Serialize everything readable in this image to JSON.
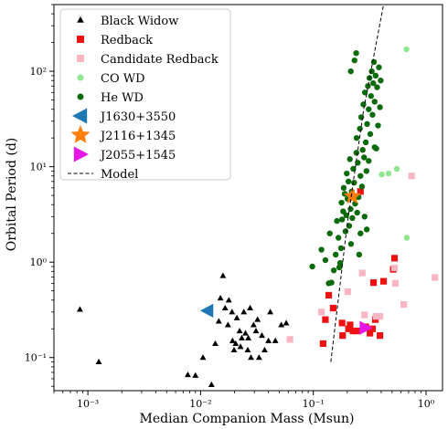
{
  "chart_data": {
    "type": "scatter",
    "xlabel": "Median Companion Mass (Msun)",
    "ylabel": "Orbital Period (d)",
    "xscale": "log",
    "yscale": "log",
    "xlim": [
      0.0005,
      1.4
    ],
    "ylim": [
      0.045,
      500
    ],
    "grid": false,
    "legend_placement": "top-left",
    "x_ticks": [
      {
        "value": 0.001,
        "label": "10⁻³"
      },
      {
        "value": 0.01,
        "label": "10⁻²"
      },
      {
        "value": 0.1,
        "label": "10⁻¹"
      },
      {
        "value": 1,
        "label": "10⁰"
      }
    ],
    "y_ticks": [
      {
        "value": 0.1,
        "label": "10⁻¹"
      },
      {
        "value": 1,
        "label": "10⁰"
      },
      {
        "value": 10,
        "label": "10¹"
      },
      {
        "value": 100,
        "label": "10²"
      }
    ],
    "series": [
      {
        "name": "Black Widow",
        "marker": "triangle",
        "color": "#000000",
        "points": [
          [
            0.00085,
            0.32
          ],
          [
            0.00125,
            0.09
          ],
          [
            0.0077,
            0.066
          ],
          [
            0.009,
            0.065
          ],
          [
            0.0125,
            0.052
          ],
          [
            0.0105,
            0.1
          ],
          [
            0.0135,
            0.14
          ],
          [
            0.0145,
            0.24
          ],
          [
            0.015,
            0.42
          ],
          [
            0.0158,
            0.72
          ],
          [
            0.0165,
            0.33
          ],
          [
            0.0175,
            0.22
          ],
          [
            0.0178,
            0.4
          ],
          [
            0.019,
            0.3
          ],
          [
            0.0192,
            0.15
          ],
          [
            0.0198,
            0.12
          ],
          [
            0.0205,
            0.14
          ],
          [
            0.021,
            0.26
          ],
          [
            0.0222,
            0.19
          ],
          [
            0.0226,
            0.13
          ],
          [
            0.0232,
            0.16
          ],
          [
            0.0242,
            0.3
          ],
          [
            0.025,
            0.18
          ],
          [
            0.0262,
            0.12
          ],
          [
            0.0265,
            0.16
          ],
          [
            0.0275,
            0.33
          ],
          [
            0.028,
            0.1
          ],
          [
            0.0295,
            0.22
          ],
          [
            0.031,
            0.19
          ],
          [
            0.032,
            0.25
          ],
          [
            0.033,
            0.1
          ],
          [
            0.035,
            0.17
          ],
          [
            0.037,
            0.12
          ],
          [
            0.04,
            0.15
          ],
          [
            0.0415,
            0.3
          ],
          [
            0.046,
            0.15
          ],
          [
            0.052,
            0.22
          ],
          [
            0.0575,
            0.23
          ]
        ]
      },
      {
        "name": "Redback",
        "marker": "square",
        "color": "#ee1111",
        "points": [
          [
            0.122,
            0.14
          ],
          [
            0.128,
            0.25
          ],
          [
            0.137,
            0.45
          ],
          [
            0.15,
            0.33
          ],
          [
            0.18,
            0.23
          ],
          [
            0.182,
            0.17
          ],
          [
            0.205,
            0.2
          ],
          [
            0.212,
            0.22
          ],
          [
            0.225,
            0.19
          ],
          [
            0.245,
            0.19
          ],
          [
            0.262,
            5.5
          ],
          [
            0.292,
            0.21
          ],
          [
            0.318,
            0.18
          ],
          [
            0.335,
            0.2
          ],
          [
            0.342,
            0.61
          ],
          [
            0.355,
            0.25
          ],
          [
            0.39,
            0.17
          ],
          [
            0.42,
            0.63
          ],
          [
            0.512,
            0.84
          ],
          [
            0.525,
            1.1
          ]
        ]
      },
      {
        "name": "Candidate Redback",
        "marker": "square",
        "color": "#f7b6c2",
        "points": [
          [
            0.062,
            0.155
          ],
          [
            0.118,
            0.3
          ],
          [
            0.202,
            0.49
          ],
          [
            0.272,
            0.77
          ],
          [
            0.285,
            0.28
          ],
          [
            0.36,
            0.27
          ],
          [
            0.39,
            0.27
          ],
          [
            0.525,
            0.87
          ],
          [
            0.535,
            0.6
          ],
          [
            0.635,
            0.36
          ],
          [
            0.745,
            8.0
          ],
          [
            1.2,
            0.69
          ]
        ]
      },
      {
        "name": "CO WD",
        "marker": "circle",
        "color": "#8ee68e",
        "points": [
          [
            0.405,
            8.3
          ],
          [
            0.465,
            8.5
          ],
          [
            0.55,
            9.5
          ],
          [
            0.67,
            170
          ],
          [
            0.675,
            1.8
          ]
        ]
      },
      {
        "name": "He WD",
        "marker": "circle",
        "color": "#0b6b0b",
        "points": [
          [
            0.137,
            0.6
          ],
          [
            0.145,
            0.61
          ],
          [
            0.152,
            0.82
          ],
          [
            0.158,
            1.2
          ],
          [
            0.162,
            2.7
          ],
          [
            0.167,
            1.8
          ],
          [
            0.17,
            0.88
          ],
          [
            0.173,
            0.98
          ],
          [
            0.176,
            1.4
          ],
          [
            0.178,
            4.2
          ],
          [
            0.18,
            2.8
          ],
          [
            0.184,
            3.4
          ],
          [
            0.186,
            6.0
          ],
          [
            0.19,
            5.2
          ],
          [
            0.193,
            2.1
          ],
          [
            0.196,
            3.1
          ],
          [
            0.198,
            8.5
          ],
          [
            0.201,
            4.6
          ],
          [
            0.205,
            7.0
          ],
          [
            0.208,
            2.4
          ],
          [
            0.211,
            12.0
          ],
          [
            0.214,
            3.6
          ],
          [
            0.216,
            1.55
          ],
          [
            0.219,
            5.5
          ],
          [
            0.222,
            2.9
          ],
          [
            0.226,
            9.5
          ],
          [
            0.23,
            6.8
          ],
          [
            0.235,
            4.1
          ],
          [
            0.241,
            14.0
          ],
          [
            0.242,
            20.0
          ],
          [
            0.245,
            3.3
          ],
          [
            0.248,
            11.0
          ],
          [
            0.252,
            4.8
          ],
          [
            0.255,
            1.2
          ],
          [
            0.259,
            25.0
          ],
          [
            0.262,
            8.0
          ],
          [
            0.266,
            33.0
          ],
          [
            0.27,
            6.2
          ],
          [
            0.274,
            15.0
          ],
          [
            0.278,
            45.0
          ],
          [
            0.282,
            12.5
          ],
          [
            0.287,
            60.0
          ],
          [
            0.292,
            18.0
          ],
          [
            0.296,
            9.0
          ],
          [
            0.3,
            28.0
          ],
          [
            0.305,
            70.0
          ],
          [
            0.31,
            40.0
          ],
          [
            0.315,
            85.0
          ],
          [
            0.32,
            22.0
          ],
          [
            0.325,
            55.0
          ],
          [
            0.33,
            100.0
          ],
          [
            0.335,
            35.0
          ],
          [
            0.34,
            75.0
          ],
          [
            0.345,
            125.0
          ],
          [
            0.35,
            48.0
          ],
          [
            0.357,
            90.0
          ],
          [
            0.362,
            15.5
          ],
          [
            0.368,
            68.0
          ],
          [
            0.375,
            27.0
          ],
          [
            0.382,
            110.0
          ],
          [
            0.39,
            42.0
          ],
          [
            0.396,
            80.0
          ],
          [
            0.098,
            0.9
          ],
          [
            0.118,
            1.35
          ],
          [
            0.128,
            1.05
          ],
          [
            0.14,
            2.0
          ],
          [
            0.215,
            100.0
          ],
          [
            0.232,
            130.0
          ],
          [
            0.24,
            155.0
          ],
          [
            0.262,
            2.0
          ],
          [
            0.285,
            3.0
          ],
          [
            0.298,
            2.2
          ],
          [
            0.31,
            11.5
          ],
          [
            0.35,
            16.0
          ]
        ]
      },
      {
        "name": "J1630+3550",
        "marker": "triangle-left",
        "color": "#1f77b4",
        "points": [
          [
            0.0115,
            0.31
          ]
        ]
      },
      {
        "name": "J2116+1345",
        "marker": "star",
        "color": "#ff7f0e",
        "points": [
          [
            0.222,
            4.9
          ]
        ]
      },
      {
        "name": "J2055+1545",
        "marker": "triangle-right",
        "color": "#e617e6",
        "points": [
          [
            0.29,
            0.205
          ]
        ]
      },
      {
        "name": "Model",
        "type": "line",
        "style": "dashed",
        "color": "#000000",
        "points": [
          [
            0.143,
            0.09
          ],
          [
            0.2,
            2.5
          ],
          [
            0.28,
            40
          ],
          [
            0.42,
            500
          ]
        ]
      }
    ]
  }
}
